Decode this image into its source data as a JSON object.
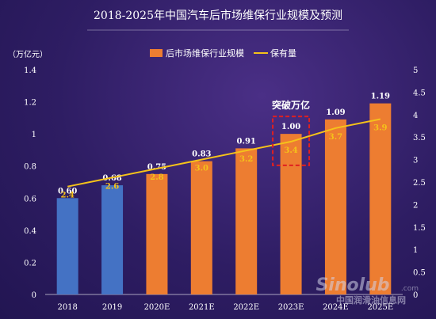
{
  "chart_data": {
    "type": "bar",
    "title": "2018-2025年中国汽车后市场维保行业规模及预测",
    "y_left_label": "（万亿元）",
    "categories": [
      "2018",
      "2019",
      "2020E",
      "2021E",
      "2022E",
      "2023E",
      "2024E",
      "2025E"
    ],
    "series": [
      {
        "name": "后市场维保行业规模",
        "type": "bar",
        "axis": "left",
        "values": [
          0.6,
          0.68,
          0.75,
          0.83,
          0.91,
          1.0,
          1.09,
          1.19
        ],
        "labels": [
          "0.60",
          "0.68",
          "0.75",
          "0.83",
          "0.91",
          "1.00",
          "1.09",
          "1.19"
        ],
        "colors": [
          "#4472c4",
          "#4472c4",
          "#ed7d31",
          "#ed7d31",
          "#ed7d31",
          "#ed7d31",
          "#ed7d31",
          "#ed7d31"
        ]
      },
      {
        "name": "保有量",
        "type": "line",
        "axis": "right",
        "values": [
          2.4,
          2.6,
          2.8,
          3.0,
          3.2,
          3.4,
          3.7,
          3.9
        ],
        "labels": [
          "2.4",
          "2.6",
          "2.8",
          "3.0",
          "3.2",
          "3.4",
          "3.7",
          "3.9"
        ],
        "color": "#f5c21a"
      }
    ],
    "y_left": {
      "min": 0,
      "max": 1.4,
      "ticks": [
        "0",
        "0.2",
        "0.4",
        "0.6",
        "0.8",
        "1",
        "1.2",
        "1.4"
      ]
    },
    "y_right": {
      "min": 0,
      "max": 5,
      "ticks": [
        "0",
        "0.5",
        "1",
        "1.5",
        "2",
        "2.5",
        "3",
        "3.5",
        "4",
        "4.5",
        "5"
      ]
    },
    "annotation": {
      "text": "突破万亿",
      "category": "2023E",
      "box_color": "#e02020"
    },
    "legend_position": "top-right",
    "grid": false
  },
  "watermark": {
    "logo": "Sinolub",
    "logo_domain": ".com",
    "text": "中国润滑油信息网"
  }
}
